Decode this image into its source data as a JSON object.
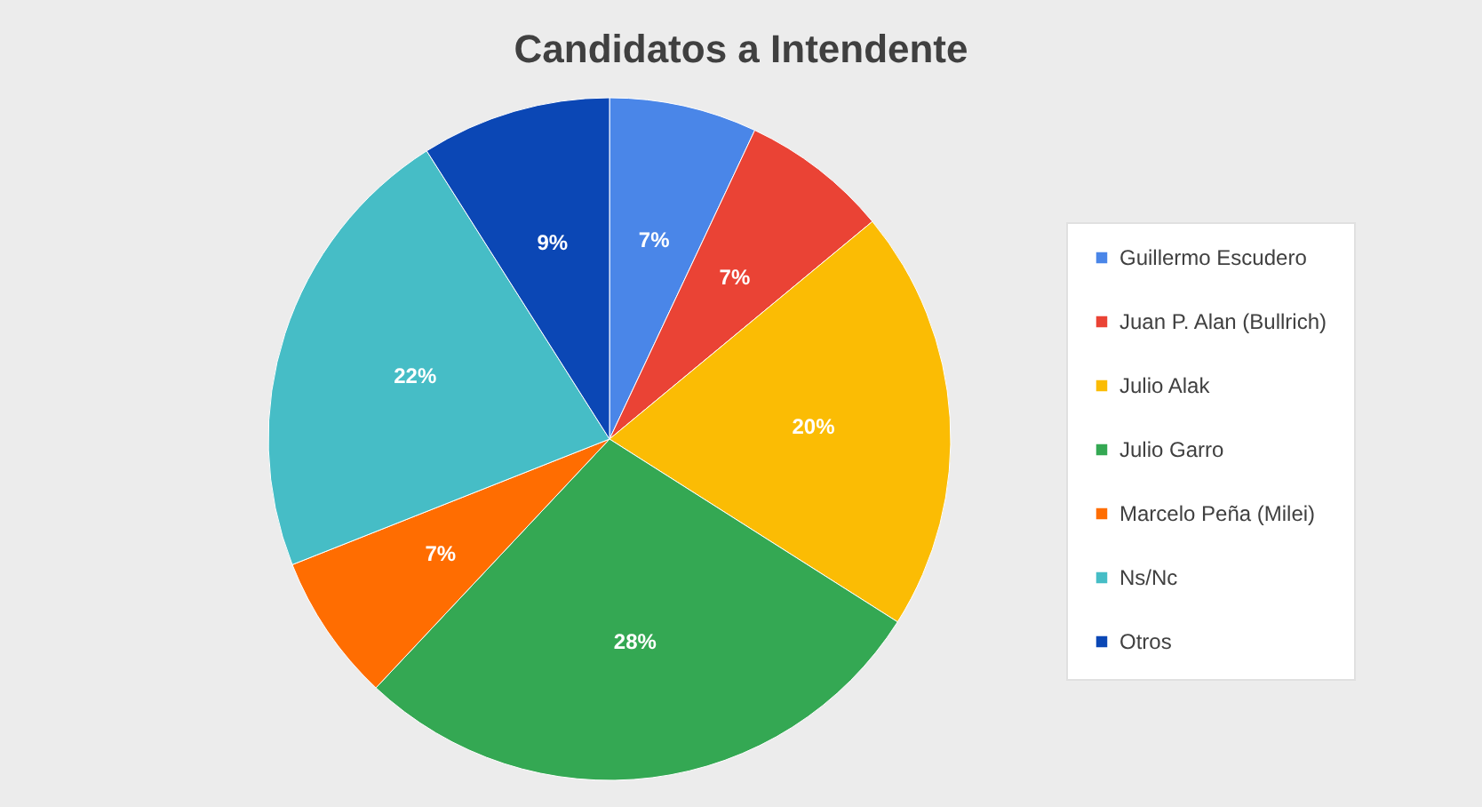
{
  "chart_data": {
    "type": "pie",
    "title": "Candidatos a Intendente",
    "categories": [
      "Guillermo Escudero",
      "Juan P. Alan (Bullrich)",
      "Julio Alak",
      "Julio Garro",
      "Marcelo Peña (Milei)",
      "Ns/Nc",
      "Otros"
    ],
    "values": [
      7,
      7,
      20,
      28,
      7,
      22,
      9
    ],
    "value_labels": [
      "7%",
      "7%",
      "20%",
      "28%",
      "7%",
      "22%",
      "9%"
    ],
    "colors": [
      "#4a86e8",
      "#ea4335",
      "#fbbc04",
      "#34a853",
      "#ff6d01",
      "#46bdc6",
      "#0b47b5"
    ],
    "legend": "right"
  }
}
